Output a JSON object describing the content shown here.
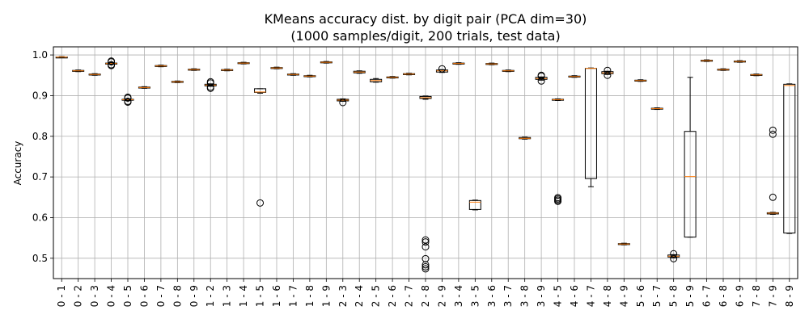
{
  "chart_data": {
    "type": "box",
    "title": "KMeans accuracy dist. by digit pair (PCA dim=30)",
    "subtitle": "(1000 samples/digit, 200 trials, test data)",
    "xlabel": "",
    "ylabel": "Accuracy",
    "ylim": [
      0.45,
      1.02
    ],
    "yticks": [
      0.5,
      0.6,
      0.7,
      0.8,
      0.9,
      1.0
    ],
    "ytick_labels": [
      "0.5",
      "0.6",
      "0.7",
      "0.8",
      "0.9",
      "1.0"
    ],
    "grid": true,
    "categories": [
      "0 - 1",
      "0 - 2",
      "0 - 3",
      "0 - 4",
      "0 - 5",
      "0 - 6",
      "0 - 7",
      "0 - 8",
      "0 - 9",
      "1 - 2",
      "1 - 3",
      "1 - 4",
      "1 - 5",
      "1 - 6",
      "1 - 7",
      "1 - 8",
      "1 - 9",
      "2 - 3",
      "2 - 4",
      "2 - 5",
      "2 - 6",
      "2 - 7",
      "2 - 8",
      "2 - 9",
      "3 - 4",
      "3 - 5",
      "3 - 6",
      "3 - 7",
      "3 - 8",
      "3 - 9",
      "4 - 5",
      "4 - 6",
      "4 - 7",
      "4 - 8",
      "4 - 9",
      "5 - 6",
      "5 - 7",
      "5 - 8",
      "5 - 9",
      "6 - 7",
      "6 - 8",
      "6 - 9",
      "7 - 8",
      "7 - 9",
      "8 - 9"
    ],
    "boxes": [
      {
        "q1": 0.994,
        "median": 0.995,
        "q3": 0.995,
        "wlo": 0.994,
        "whi": 0.996,
        "outliers": []
      },
      {
        "q1": 0.96,
        "median": 0.961,
        "q3": 0.962,
        "wlo": 0.959,
        "whi": 0.963,
        "outliers": []
      },
      {
        "q1": 0.951,
        "median": 0.952,
        "q3": 0.953,
        "wlo": 0.95,
        "whi": 0.954,
        "outliers": []
      },
      {
        "q1": 0.978,
        "median": 0.979,
        "q3": 0.98,
        "wlo": 0.977,
        "whi": 0.981,
        "outliers": [
          0.974,
          0.976,
          0.983,
          0.985
        ]
      },
      {
        "q1": 0.889,
        "median": 0.89,
        "q3": 0.891,
        "wlo": 0.888,
        "whi": 0.892,
        "outliers": [
          0.884,
          0.886,
          0.894,
          0.896
        ]
      },
      {
        "q1": 0.919,
        "median": 0.92,
        "q3": 0.921,
        "wlo": 0.918,
        "whi": 0.922,
        "outliers": []
      },
      {
        "q1": 0.972,
        "median": 0.973,
        "q3": 0.974,
        "wlo": 0.971,
        "whi": 0.975,
        "outliers": []
      },
      {
        "q1": 0.933,
        "median": 0.934,
        "q3": 0.935,
        "wlo": 0.932,
        "whi": 0.936,
        "outliers": []
      },
      {
        "q1": 0.963,
        "median": 0.964,
        "q3": 0.965,
        "wlo": 0.962,
        "whi": 0.966,
        "outliers": []
      },
      {
        "q1": 0.924,
        "median": 0.926,
        "q3": 0.928,
        "wlo": 0.923,
        "whi": 0.929,
        "outliers": [
          0.918,
          0.921,
          0.931,
          0.934
        ]
      },
      {
        "q1": 0.962,
        "median": 0.963,
        "q3": 0.964,
        "wlo": 0.961,
        "whi": 0.965,
        "outliers": []
      },
      {
        "q1": 0.979,
        "median": 0.98,
        "q3": 0.981,
        "wlo": 0.978,
        "whi": 0.982,
        "outliers": []
      },
      {
        "q1": 0.908,
        "median": 0.909,
        "q3": 0.917,
        "wlo": 0.906,
        "whi": 0.917,
        "outliers": [
          0.636
        ]
      },
      {
        "q1": 0.967,
        "median": 0.968,
        "q3": 0.969,
        "wlo": 0.966,
        "whi": 0.97,
        "outliers": []
      },
      {
        "q1": 0.951,
        "median": 0.952,
        "q3": 0.953,
        "wlo": 0.95,
        "whi": 0.954,
        "outliers": []
      },
      {
        "q1": 0.947,
        "median": 0.948,
        "q3": 0.949,
        "wlo": 0.946,
        "whi": 0.95,
        "outliers": []
      },
      {
        "q1": 0.981,
        "median": 0.982,
        "q3": 0.983,
        "wlo": 0.98,
        "whi": 0.984,
        "outliers": []
      },
      {
        "q1": 0.887,
        "median": 0.889,
        "q3": 0.891,
        "wlo": 0.886,
        "whi": 0.892,
        "outliers": [
          0.883
        ]
      },
      {
        "q1": 0.956,
        "median": 0.958,
        "q3": 0.96,
        "wlo": 0.955,
        "whi": 0.961,
        "outliers": []
      },
      {
        "q1": 0.934,
        "median": 0.937,
        "q3": 0.94,
        "wlo": 0.933,
        "whi": 0.942,
        "outliers": []
      },
      {
        "q1": 0.944,
        "median": 0.945,
        "q3": 0.946,
        "wlo": 0.943,
        "whi": 0.947,
        "outliers": []
      },
      {
        "q1": 0.952,
        "median": 0.953,
        "q3": 0.954,
        "wlo": 0.951,
        "whi": 0.955,
        "outliers": []
      },
      {
        "q1": 0.893,
        "median": 0.895,
        "q3": 0.898,
        "wlo": 0.891,
        "whi": 0.899,
        "outliers": [
          0.474,
          0.479,
          0.484,
          0.499,
          0.528,
          0.54,
          0.545
        ]
      },
      {
        "q1": 0.958,
        "median": 0.961,
        "q3": 0.963,
        "wlo": 0.957,
        "whi": 0.964,
        "outliers": [
          0.966
        ]
      },
      {
        "q1": 0.978,
        "median": 0.979,
        "q3": 0.98,
        "wlo": 0.977,
        "whi": 0.981,
        "outliers": []
      },
      {
        "q1": 0.62,
        "median": 0.638,
        "q3": 0.642,
        "wlo": 0.619,
        "whi": 0.643,
        "outliers": []
      },
      {
        "q1": 0.977,
        "median": 0.978,
        "q3": 0.979,
        "wlo": 0.976,
        "whi": 0.98,
        "outliers": []
      },
      {
        "q1": 0.96,
        "median": 0.961,
        "q3": 0.962,
        "wlo": 0.959,
        "whi": 0.963,
        "outliers": []
      },
      {
        "q1": 0.794,
        "median": 0.795,
        "q3": 0.797,
        "wlo": 0.793,
        "whi": 0.798,
        "outliers": []
      },
      {
        "q1": 0.94,
        "median": 0.942,
        "q3": 0.945,
        "wlo": 0.938,
        "whi": 0.946,
        "outliers": [
          0.936,
          0.948,
          0.95
        ]
      },
      {
        "q1": 0.889,
        "median": 0.89,
        "q3": 0.891,
        "wlo": 0.888,
        "whi": 0.892,
        "outliers": [
          0.64,
          0.643,
          0.646,
          0.649
        ]
      },
      {
        "q1": 0.946,
        "median": 0.947,
        "q3": 0.948,
        "wlo": 0.945,
        "whi": 0.949,
        "outliers": []
      },
      {
        "q1": 0.696,
        "median": 0.967,
        "q3": 0.967,
        "wlo": 0.676,
        "whi": 0.968,
        "outliers": []
      },
      {
        "q1": 0.954,
        "median": 0.956,
        "q3": 0.959,
        "wlo": 0.952,
        "whi": 0.96,
        "outliers": [
          0.95,
          0.962
        ]
      },
      {
        "q1": 0.534,
        "median": 0.535,
        "q3": 0.536,
        "wlo": 0.533,
        "whi": 0.537,
        "outliers": []
      },
      {
        "q1": 0.936,
        "median": 0.937,
        "q3": 0.938,
        "wlo": 0.935,
        "whi": 0.939,
        "outliers": []
      },
      {
        "q1": 0.867,
        "median": 0.868,
        "q3": 0.869,
        "wlo": 0.866,
        "whi": 0.87,
        "outliers": []
      },
      {
        "q1": 0.503,
        "median": 0.505,
        "q3": 0.508,
        "wlo": 0.501,
        "whi": 0.509,
        "outliers": [
          0.499,
          0.511
        ]
      },
      {
        "q1": 0.552,
        "median": 0.701,
        "q3": 0.812,
        "wlo": 0.552,
        "whi": 0.945,
        "outliers": []
      },
      {
        "q1": 0.985,
        "median": 0.986,
        "q3": 0.987,
        "wlo": 0.984,
        "whi": 0.988,
        "outliers": []
      },
      {
        "q1": 0.963,
        "median": 0.964,
        "q3": 0.965,
        "wlo": 0.962,
        "whi": 0.966,
        "outliers": []
      },
      {
        "q1": 0.983,
        "median": 0.984,
        "q3": 0.985,
        "wlo": 0.982,
        "whi": 0.986,
        "outliers": []
      },
      {
        "q1": 0.95,
        "median": 0.951,
        "q3": 0.952,
        "wlo": 0.949,
        "whi": 0.953,
        "outliers": []
      },
      {
        "q1": 0.609,
        "median": 0.611,
        "q3": 0.612,
        "wlo": 0.608,
        "whi": 0.613,
        "outliers": [
          0.65,
          0.805,
          0.815
        ]
      },
      {
        "q1": 0.562,
        "median": 0.925,
        "q3": 0.928,
        "wlo": 0.561,
        "whi": 0.929,
        "outliers": []
      }
    ],
    "colors": {
      "box": "#000000",
      "median": "#ff7f0e",
      "grid": "#b0b0b0",
      "outlier": "#000000"
    }
  }
}
